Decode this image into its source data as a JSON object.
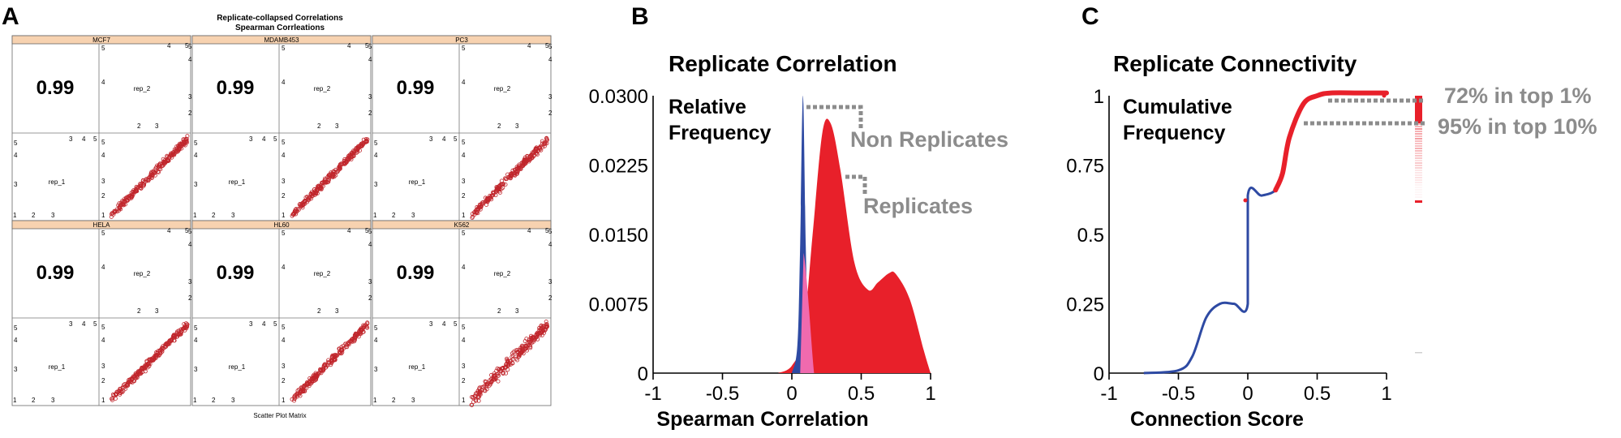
{
  "panels": {
    "a": {
      "letter": "A",
      "title_line1": "Replicate-collapsed Correlations",
      "title_line2": "Spearman Corrleations",
      "footer": "Scatter Plot Matrix",
      "cells": [
        {
          "name": "MCF7",
          "corr": "0.99"
        },
        {
          "name": "MDAMB453",
          "corr": "0.99"
        },
        {
          "name": "PC3",
          "corr": "0.99"
        },
        {
          "name": "HELA",
          "corr": "0.99"
        },
        {
          "name": "HL60",
          "corr": "0.99"
        },
        {
          "name": "K562",
          "corr": "0.99"
        }
      ],
      "rep1_label": "rep_1",
      "rep2_label": "rep_2",
      "ticks_a": [
        "2",
        "3"
      ],
      "ticks_b": [
        "3",
        "4",
        "5"
      ],
      "ticks_c": [
        "4",
        "5"
      ],
      "ticks_d": [
        "1",
        "2",
        "3"
      ],
      "ticks_right": [
        "5",
        "4",
        "3",
        "2",
        "1"
      ]
    },
    "b": {
      "letter": "B",
      "title": "Replicate Correlation",
      "ylabel_line1": "Relative",
      "ylabel_line2": "Frequency",
      "xlabel": "Spearman Correlation",
      "label_non_replicates": "Non Replicates",
      "label_replicates": "Replicates",
      "x_ticks": [
        "-1",
        "-0.5",
        "0",
        "0.5",
        "1"
      ],
      "y_ticks": [
        "0",
        "0.0075",
        "0.0150",
        "0.0225",
        "0.0300"
      ]
    },
    "c": {
      "letter": "C",
      "title": "Replicate Connectivity",
      "ylabel_line1": "Cumulative",
      "ylabel_line2": "Frequency",
      "xlabel": "Connection Score",
      "annotation_top1": "72% in top 1%",
      "annotation_top10": "95% in top 10%",
      "x_ticks": [
        "-1",
        "-0.5",
        "0",
        "0.5",
        "1"
      ],
      "y_ticks": [
        "0",
        "0.25",
        "0.5",
        "0.75",
        "1"
      ]
    }
  },
  "colors": {
    "non_replicates": "#2e4aa3",
    "replicates": "#e8202a",
    "overlap": "#f06aae",
    "annotation_gray": "#8c8c8c",
    "strip_header": "#f7d2b0",
    "scatter_point": "#c0262c"
  },
  "chart_data": [
    {
      "type": "scatter",
      "title": "Replicate-collapsed Correlations",
      "subtitle": "Spearman Corrleations",
      "xlabel": "rep_1",
      "ylabel": "rep_2",
      "panels": [
        {
          "name": "MCF7",
          "spearman": 0.99
        },
        {
          "name": "MDAMB453",
          "spearman": 0.99
        },
        {
          "name": "PC3",
          "spearman": 0.99
        },
        {
          "name": "HELA",
          "spearman": 0.99
        },
        {
          "name": "HL60",
          "spearman": 0.99
        },
        {
          "name": "K562",
          "spearman": 0.99
        }
      ],
      "xlim": [
        1,
        5
      ],
      "ylim": [
        1,
        5
      ]
    },
    {
      "type": "area",
      "title": "Replicate Correlation",
      "xlabel": "Spearman Correlation",
      "ylabel": "Relative Frequency",
      "xlim": [
        -1,
        1
      ],
      "ylim": [
        0,
        0.03
      ],
      "series": [
        {
          "name": "Non Replicates",
          "x": [
            0.0,
            0.04,
            0.06,
            0.08,
            0.1,
            0.12,
            0.15
          ],
          "values": [
            0.0,
            0.003,
            0.014,
            0.03,
            0.014,
            0.003,
            0.0
          ]
        },
        {
          "name": "Replicates",
          "x": [
            -0.1,
            0.0,
            0.08,
            0.15,
            0.22,
            0.28,
            0.35,
            0.45,
            0.55,
            0.62,
            0.7,
            0.75,
            0.85,
            0.95,
            1.0
          ],
          "values": [
            0.0,
            0.0008,
            0.004,
            0.015,
            0.026,
            0.027,
            0.022,
            0.012,
            0.009,
            0.0098,
            0.0108,
            0.0107,
            0.008,
            0.0025,
            0.0
          ]
        }
      ]
    },
    {
      "type": "line",
      "title": "Replicate Connectivity",
      "xlabel": "Connection Score",
      "ylabel": "Cumulative Frequency",
      "xlim": [
        -1,
        1
      ],
      "ylim": [
        0,
        1
      ],
      "series": [
        {
          "name": "Cumulative Frequency",
          "x": [
            -0.75,
            -0.5,
            -0.4,
            -0.3,
            -0.2,
            -0.1,
            0.0,
            0.0,
            0.1,
            0.2,
            0.25,
            0.3,
            0.4,
            0.5,
            0.6,
            0.8,
            1.0
          ],
          "values": [
            0.0,
            0.01,
            0.06,
            0.2,
            0.25,
            0.25,
            0.25,
            0.64,
            0.64,
            0.66,
            0.72,
            0.85,
            0.97,
            1.0,
            1.01,
            1.01,
            1.01
          ]
        }
      ],
      "annotations": [
        "72% in top 1%",
        "95% in top 10%"
      ]
    }
  ]
}
